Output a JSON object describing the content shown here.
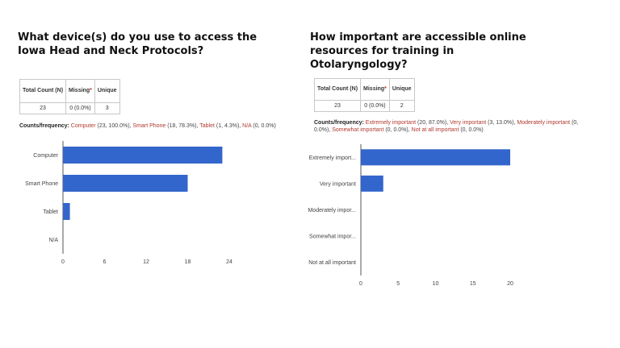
{
  "left": {
    "question": "What device(s) do you use to access the Iowa Head and Neck Protocols?",
    "stats": {
      "headers": [
        "Total Count (N)",
        "Missing",
        "Unique"
      ],
      "missing_marker": "*",
      "values": [
        "23",
        "0 (0.0%)",
        "3"
      ]
    },
    "frequency_label": "Counts/frequency:",
    "frequency": [
      {
        "option": "Computer",
        "count": "(23, 100.0%)"
      },
      {
        "option": "Smart Phone",
        "count": "(18, 78.3%)"
      },
      {
        "option": "Tablet",
        "count": "(1, 4.3%)"
      },
      {
        "option": "N/A",
        "count": "(0, 0.0%)"
      }
    ]
  },
  "right": {
    "question": "How important are accessible online resources for training in Otolaryngology?",
    "stats": {
      "headers": [
        "Total Count (N)",
        "Missing",
        "Unique"
      ],
      "missing_marker": "*",
      "values": [
        "23",
        "0 (0.0%)",
        "2"
      ]
    },
    "frequency_label": "Counts/frequency:",
    "frequency": [
      {
        "option": "Extremely important",
        "count": "(20, 87.0%)"
      },
      {
        "option": "Very important",
        "count": "(3, 13.0%)"
      },
      {
        "option": "Moderately important",
        "count": "(0, 0.0%)"
      },
      {
        "option": "Somewhat important",
        "count": "(0, 0.0%)"
      },
      {
        "option": "Not at all important",
        "count": "(0, 0.0%)"
      }
    ]
  },
  "colors": {
    "bar": "#3366cc",
    "option_text": "#b03a2e",
    "required_star": "#c0392b"
  },
  "chart_data": [
    {
      "type": "bar",
      "orientation": "horizontal",
      "categories": [
        "Computer",
        "Smart Phone",
        "Tablet",
        "N/A"
      ],
      "values": [
        23,
        18,
        1,
        0
      ],
      "xlim": [
        0,
        24
      ],
      "xticks": [
        0,
        6,
        12,
        18,
        24
      ],
      "grid": false
    },
    {
      "type": "bar",
      "orientation": "horizontal",
      "categories": [
        "Extremely import...",
        "Very important",
        "Moderately impor...",
        "Somewhat impor...",
        "Not at all important"
      ],
      "values": [
        20,
        3,
        0,
        0,
        0
      ],
      "xlim": [
        0,
        20
      ],
      "xticks": [
        0,
        5,
        10,
        15,
        20
      ],
      "grid": false
    }
  ]
}
